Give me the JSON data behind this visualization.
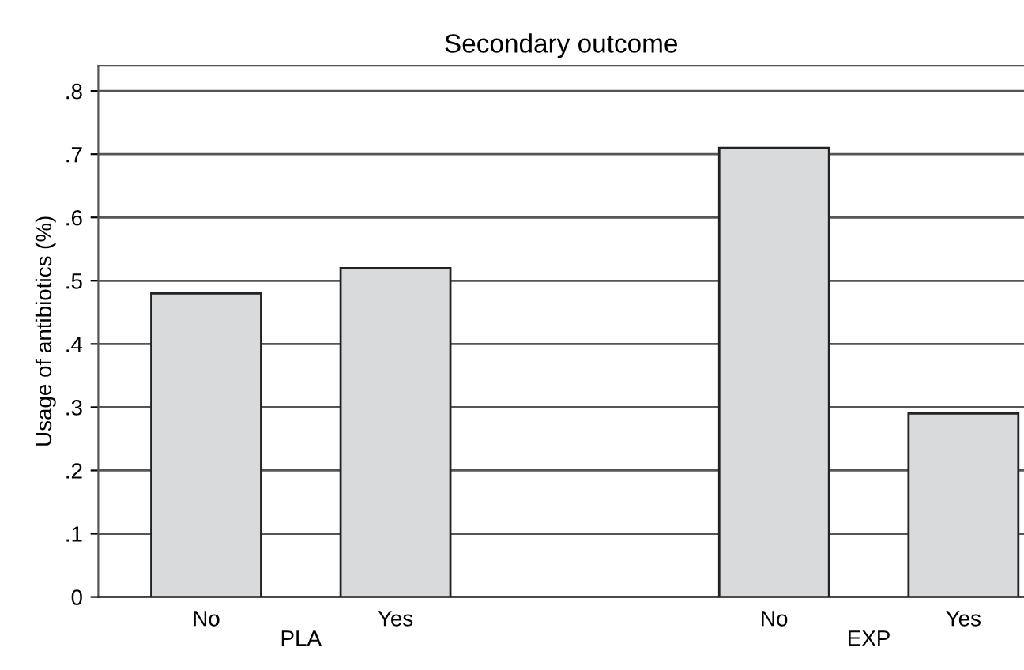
{
  "chart_data": {
    "type": "bar",
    "title": "Secondary outcome",
    "ylabel": "Usage of antibiotics (%)",
    "categories": [
      "No",
      "Yes",
      null,
      "No",
      "Yes"
    ],
    "series": [
      {
        "color": "#d9dadc",
        "values": [
          0.48,
          0.52,
          null,
          0.71,
          0.29
        ]
      }
    ],
    "ylim": [
      0,
      0.84
    ],
    "yticks": [
      {
        "value": 0,
        "label": "0"
      },
      {
        "value": 0.1,
        "label": ".1"
      },
      {
        "value": 0.2,
        "label": ".2"
      },
      {
        "value": 0.3,
        "label": ".3"
      },
      {
        "value": 0.4,
        "label": ".4"
      },
      {
        "value": 0.5,
        "label": ".5"
      },
      {
        "value": 0.6,
        "label": ".6"
      },
      {
        "value": 0.7,
        "label": ".7"
      },
      {
        "value": 0.8,
        "label": ".8"
      }
    ],
    "grid": "y",
    "annotations": [
      "PLA",
      "EXP"
    ]
  }
}
